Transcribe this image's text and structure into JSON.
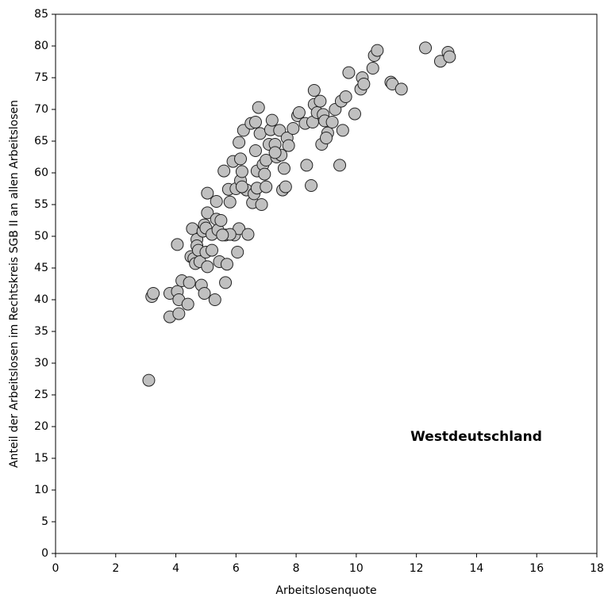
{
  "chart_data": {
    "type": "scatter",
    "xlabel": "Arbeitslosenquote",
    "ylabel": "Anteil der Arbeitslosen im Rechtskreis SGB II an allen Arbeitslosen",
    "annotation": "Westdeutschland",
    "color": "#c0c0c0",
    "x": [
      3.1,
      3.2,
      3.25,
      3.8,
      3.8,
      4.05,
      4.05,
      4.1,
      4.1,
      4.2,
      4.4,
      4.45,
      4.5,
      4.55,
      4.6,
      4.65,
      4.7,
      4.7,
      4.75,
      4.8,
      4.85,
      4.9,
      4.95,
      4.95,
      5.0,
      5.0,
      5.05,
      5.05,
      5.05,
      5.2,
      5.2,
      5.3,
      5.35,
      5.35,
      5.4,
      5.45,
      5.5,
      5.6,
      5.65,
      5.65,
      5.7,
      5.75,
      5.8,
      5.9,
      5.95,
      6.0,
      6.05,
      6.1,
      6.1,
      6.15,
      6.15,
      6.2,
      6.25,
      6.35,
      6.4,
      6.5,
      6.55,
      6.6,
      6.65,
      6.65,
      6.7,
      6.7,
      6.75,
      6.8,
      6.85,
      6.9,
      6.95,
      7.0,
      7.0,
      7.1,
      7.15,
      7.2,
      7.3,
      7.35,
      7.45,
      7.5,
      7.55,
      7.6,
      7.65,
      7.7,
      7.75,
      7.9,
      8.05,
      8.1,
      8.3,
      8.35,
      8.5,
      8.55,
      8.6,
      8.6,
      8.7,
      8.8,
      8.85,
      8.9,
      8.95,
      9.05,
      9.0,
      9.2,
      9.3,
      9.45,
      9.5,
      9.55,
      9.65,
      9.75,
      9.95,
      10.15,
      10.2,
      10.25,
      10.55,
      10.6,
      10.7,
      11.15,
      11.2,
      11.5,
      12.3,
      12.8,
      13.05,
      13.1,
      6.2,
      5.8,
      5.55,
      7.3
    ],
    "values": [
      27.3,
      40.5,
      41,
      37.3,
      41,
      48.7,
      41.3,
      40,
      37.8,
      43,
      39.3,
      42.7,
      46.8,
      51.2,
      46.5,
      45.7,
      49.5,
      48.5,
      47.8,
      46,
      42.3,
      50.8,
      51.8,
      41,
      51.3,
      47.5,
      45.2,
      53.7,
      56.8,
      50.3,
      47.8,
      40,
      52.7,
      55.5,
      51,
      46,
      52.5,
      60.3,
      50.2,
      42.7,
      45.6,
      57.4,
      55.4,
      61.8,
      50.2,
      57.5,
      47.5,
      51.2,
      64.8,
      58.8,
      62.2,
      60.2,
      66.7,
      57.3,
      50.3,
      67.8,
      55.3,
      56.7,
      63.5,
      68,
      60.3,
      57.6,
      70.3,
      66.2,
      55,
      61.3,
      59.8,
      62,
      57.8,
      64.5,
      66.8,
      68.3,
      64.5,
      62.5,
      66.7,
      62.8,
      57.3,
      60.7,
      57.8,
      65.5,
      64.3,
      67,
      69,
      69.5,
      67.8,
      61.2,
      58,
      68,
      73,
      70.8,
      69.5,
      71.3,
      64.5,
      69.2,
      68.2,
      66.3,
      65.5,
      68,
      70,
      61.2,
      71.3,
      66.7,
      72,
      75.8,
      69.3,
      73.2,
      75,
      74,
      76.5,
      78.5,
      79.3,
      74.3,
      74,
      73.2,
      79.7,
      77.6,
      79,
      78.3,
      57.8,
      50.3,
      50.2,
      63.2
    ],
    "xlim": [
      0,
      18
    ],
    "xticks": [
      0,
      2,
      4,
      6,
      8,
      10,
      12,
      14,
      16,
      18
    ],
    "ylim": [
      0,
      85
    ],
    "yticks": [
      0,
      5,
      10,
      15,
      20,
      25,
      30,
      35,
      40,
      45,
      50,
      55,
      60,
      65,
      70,
      75,
      80,
      85
    ]
  }
}
